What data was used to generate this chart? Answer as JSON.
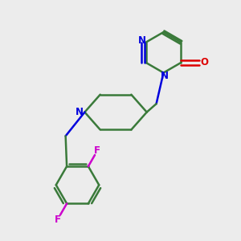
{
  "background_color": "#ececec",
  "bond_color": "#3a7a3a",
  "N_color": "#0000dd",
  "O_color": "#dd0000",
  "F_color": "#cc00cc",
  "line_width": 1.8,
  "figsize": [
    3.0,
    3.0
  ],
  "dpi": 100,
  "xlim": [
    0,
    10
  ],
  "ylim": [
    0,
    10
  ]
}
